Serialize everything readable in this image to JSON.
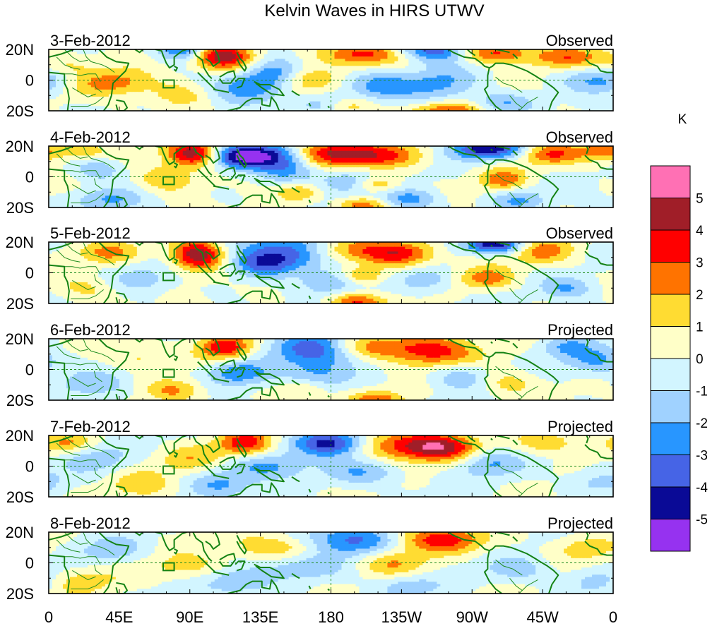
{
  "chart_data": {
    "type": "heatmap",
    "title": "Kelvin Waves in HIRS UTWV",
    "colorbar": {
      "unit": "K",
      "labels": [
        "5",
        "4",
        "3",
        "2",
        "1",
        "0",
        "-1",
        "-2",
        "-3",
        "-4",
        "-5"
      ],
      "colors": [
        "#ff70b4",
        "#a01e28",
        "#ff0000",
        "#ff7300",
        "#ffdc32",
        "#ffffc8",
        "#d2f5ff",
        "#a0d2ff",
        "#2896ff",
        "#4664e6",
        "#0a0a96",
        "#9632f0"
      ]
    },
    "x_ticks": [
      "0",
      "45E",
      "90E",
      "135E",
      "180",
      "135W",
      "90W",
      "45W",
      "0"
    ],
    "y_ticks": [
      "20N",
      "0",
      "20S"
    ],
    "lon_range": [
      0,
      360
    ],
    "lat_range": [
      -20,
      20
    ],
    "panels": [
      {
        "date": "3-Feb-2012",
        "status": "Observed",
        "features": [
          [
            -4.5,
            88,
            20,
            12,
            5
          ],
          [
            4.5,
            108,
            17,
            14,
            5
          ],
          [
            -3.5,
            148,
            6,
            18,
            7
          ],
          [
            4.5,
            280,
            18,
            18,
            5
          ],
          [
            -4.5,
            250,
            19,
            20,
            5
          ],
          [
            3.5,
            200,
            17,
            20,
            5
          ],
          [
            3.5,
            162,
            2,
            14,
            7
          ],
          [
            2.5,
            330,
            15,
            16,
            5
          ],
          [
            -2.5,
            355,
            0,
            18,
            6
          ],
          [
            -2.5,
            128,
            -5,
            18,
            8
          ],
          [
            -2.5,
            210,
            -3,
            16,
            6
          ],
          [
            -2,
            250,
            -3,
            16,
            8
          ],
          [
            2.5,
            40,
            -2,
            20,
            6
          ],
          [
            2.5,
            120,
            10,
            16,
            6
          ],
          [
            3,
            255,
            -20,
            16,
            4
          ],
          [
            2.5,
            190,
            -17,
            12,
            4
          ],
          [
            -2,
            175,
            -16,
            14,
            5
          ],
          [
            -2,
            290,
            -15,
            14,
            5
          ],
          [
            1.5,
            10,
            10,
            14,
            6
          ],
          [
            1.5,
            85,
            -10,
            14,
            6
          ]
        ]
      },
      {
        "date": "4-Feb-2012",
        "status": "Observed",
        "features": [
          [
            5,
            92,
            15,
            12,
            6
          ],
          [
            -4.5,
            138,
            14,
            20,
            6
          ],
          [
            3,
            175,
            15,
            16,
            6
          ],
          [
            3.5,
            205,
            14,
            24,
            6
          ],
          [
            -4.5,
            280,
            18,
            18,
            5
          ],
          [
            3,
            320,
            15,
            15,
            5
          ],
          [
            2.5,
            355,
            17,
            10,
            5
          ],
          [
            -2.5,
            120,
            12,
            12,
            5
          ],
          [
            -2,
            152,
            4,
            14,
            6
          ],
          [
            2,
            160,
            -10,
            10,
            4
          ],
          [
            -2,
            190,
            -3,
            14,
            6
          ],
          [
            2.5,
            210,
            -5,
            10,
            4
          ],
          [
            3,
            200,
            -19,
            12,
            4
          ],
          [
            -2.5,
            230,
            -15,
            14,
            5
          ],
          [
            2.5,
            290,
            -2,
            10,
            5
          ],
          [
            -2,
            300,
            -15,
            12,
            5
          ],
          [
            -2,
            30,
            5,
            12,
            5
          ],
          [
            2,
            75,
            -1,
            14,
            6
          ],
          [
            -2,
            40,
            -15,
            14,
            5
          ],
          [
            2,
            20,
            17,
            10,
            4
          ]
        ]
      },
      {
        "date": "5-Feb-2012",
        "status": "Observed",
        "features": [
          [
            5,
            95,
            12,
            12,
            7
          ],
          [
            -4.5,
            155,
            14,
            22,
            8
          ],
          [
            3,
            185,
            15,
            22,
            6
          ],
          [
            3.5,
            225,
            12,
            16,
            6
          ],
          [
            -4.5,
            285,
            18,
            14,
            4
          ],
          [
            2.5,
            315,
            14,
            14,
            6
          ],
          [
            -2.5,
            135,
            5,
            14,
            6
          ],
          [
            -2,
            180,
            -6,
            12,
            5
          ],
          [
            2.5,
            200,
            -2,
            10,
            4
          ],
          [
            3,
            195,
            -19,
            12,
            4
          ],
          [
            -2,
            240,
            -5,
            12,
            6
          ],
          [
            2.5,
            280,
            -4,
            12,
            5
          ],
          [
            2,
            40,
            13,
            14,
            5
          ],
          [
            -1.5,
            60,
            -5,
            14,
            6
          ],
          [
            1.5,
            25,
            -10,
            14,
            6
          ],
          [
            -2,
            330,
            -10,
            12,
            5
          ]
        ]
      },
      {
        "date": "6-Feb-2012",
        "status": "Projected",
        "features": [
          [
            4,
            112,
            15,
            12,
            6
          ],
          [
            -4.5,
            170,
            14,
            20,
            8
          ],
          [
            3,
            200,
            15,
            22,
            6
          ],
          [
            3.5,
            245,
            12,
            18,
            7
          ],
          [
            -3,
            120,
            -2,
            14,
            6
          ],
          [
            -2,
            170,
            -5,
            16,
            6
          ],
          [
            2,
            160,
            -12,
            12,
            5
          ],
          [
            -2,
            265,
            -5,
            16,
            6
          ],
          [
            2,
            290,
            -8,
            14,
            6
          ],
          [
            -2,
            350,
            5,
            14,
            6
          ],
          [
            1.5,
            60,
            8,
            16,
            6
          ],
          [
            -1.5,
            30,
            -10,
            16,
            6
          ],
          [
            2,
            80,
            -14,
            12,
            5
          ],
          [
            2.5,
            210,
            -20,
            12,
            4
          ],
          [
            -2,
            330,
            15,
            12,
            5
          ]
        ]
      },
      {
        "date": "7-Feb-2012",
        "status": "Projected",
        "features": [
          [
            3.5,
            125,
            15,
            12,
            6
          ],
          [
            -4.5,
            180,
            15,
            16,
            6
          ],
          [
            3,
            225,
            14,
            22,
            7
          ],
          [
            3.5,
            250,
            12,
            16,
            6
          ],
          [
            -2,
            140,
            0,
            18,
            6
          ],
          [
            -2,
            200,
            -4,
            18,
            6
          ],
          [
            1.5,
            90,
            5,
            14,
            6
          ],
          [
            -1.5,
            30,
            5,
            14,
            6
          ],
          [
            -2,
            110,
            -12,
            14,
            6
          ],
          [
            1.5,
            60,
            -12,
            14,
            6
          ],
          [
            -2,
            280,
            2,
            14,
            6
          ],
          [
            2,
            320,
            15,
            14,
            5
          ],
          [
            -1.5,
            350,
            -10,
            14,
            6
          ],
          [
            2,
            10,
            15,
            12,
            5
          ]
        ]
      },
      {
        "date": "8-Feb-2012",
        "status": "Projected",
        "features": [
          [
            -3.5,
            195,
            14,
            20,
            7
          ],
          [
            3.5,
            250,
            15,
            20,
            6
          ],
          [
            2,
            145,
            10,
            20,
            6
          ],
          [
            -2,
            165,
            -3,
            18,
            6
          ],
          [
            1.5,
            90,
            -3,
            18,
            6
          ],
          [
            -2,
            120,
            -12,
            16,
            6
          ],
          [
            2,
            220,
            0,
            16,
            6
          ],
          [
            -1.5,
            40,
            8,
            16,
            6
          ],
          [
            1.5,
            20,
            -12,
            16,
            6
          ],
          [
            -1.5,
            300,
            -5,
            16,
            6
          ],
          [
            1.5,
            340,
            10,
            14,
            6
          ],
          [
            -1.5,
            350,
            -12,
            14,
            6
          ],
          [
            -1.5,
            230,
            -15,
            14,
            5
          ]
        ]
      }
    ]
  }
}
